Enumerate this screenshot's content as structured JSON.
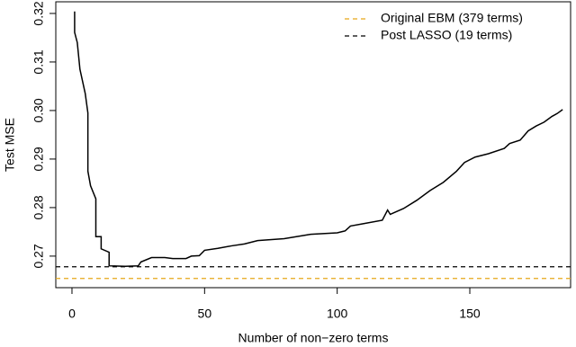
{
  "chart_data": {
    "type": "line",
    "xlabel": "Number of non−zero terms",
    "ylabel": "Test MSE",
    "x": [
      1,
      1,
      2,
      3,
      5,
      6,
      6,
      7,
      9,
      9,
      11,
      11,
      14,
      14,
      20,
      25,
      26,
      30,
      35,
      38,
      43,
      45,
      48,
      50,
      55,
      60,
      65,
      70,
      80,
      90,
      100,
      103,
      105,
      110,
      117,
      119,
      120,
      125,
      130,
      135,
      140,
      145,
      148,
      152,
      157,
      163,
      165,
      169,
      172,
      175,
      178,
      181,
      183,
      185
    ],
    "series": [
      {
        "color": "#000000",
        "values": [
          0.3204,
          0.3161,
          0.314,
          0.3085,
          0.3035,
          0.2995,
          0.2875,
          0.2845,
          0.2818,
          0.274,
          0.274,
          0.2715,
          0.2708,
          0.268,
          0.2679,
          0.268,
          0.2688,
          0.2697,
          0.2697,
          0.2695,
          0.2695,
          0.27,
          0.2701,
          0.2712,
          0.2716,
          0.2721,
          0.2725,
          0.2732,
          0.2736,
          0.2745,
          0.2748,
          0.2752,
          0.2762,
          0.2767,
          0.2774,
          0.2795,
          0.2786,
          0.2798,
          0.2815,
          0.2835,
          0.2852,
          0.2875,
          0.2893,
          0.2904,
          0.2911,
          0.2922,
          0.2932,
          0.2939,
          0.2958,
          0.2968,
          0.2976,
          0.2988,
          0.2994,
          0.3002
        ]
      }
    ],
    "reference_lines": [
      {
        "name": "Original EBM (379 terms)",
        "color": "#e6a817",
        "value": 0.2654
      },
      {
        "name": "Post LASSO (19 terms)",
        "color": "#000000",
        "value": 0.2678
      }
    ],
    "xlim": [
      -6.1,
      188
    ],
    "ylim": [
      0.2635,
      0.3224
    ],
    "xticks": [
      0,
      50,
      100,
      150
    ],
    "yticks": [
      0.27,
      0.28,
      0.29,
      {
        "value": 0.3,
        "label": "0.30"
      },
      0.31,
      0.32
    ],
    "legend": "top-right"
  }
}
